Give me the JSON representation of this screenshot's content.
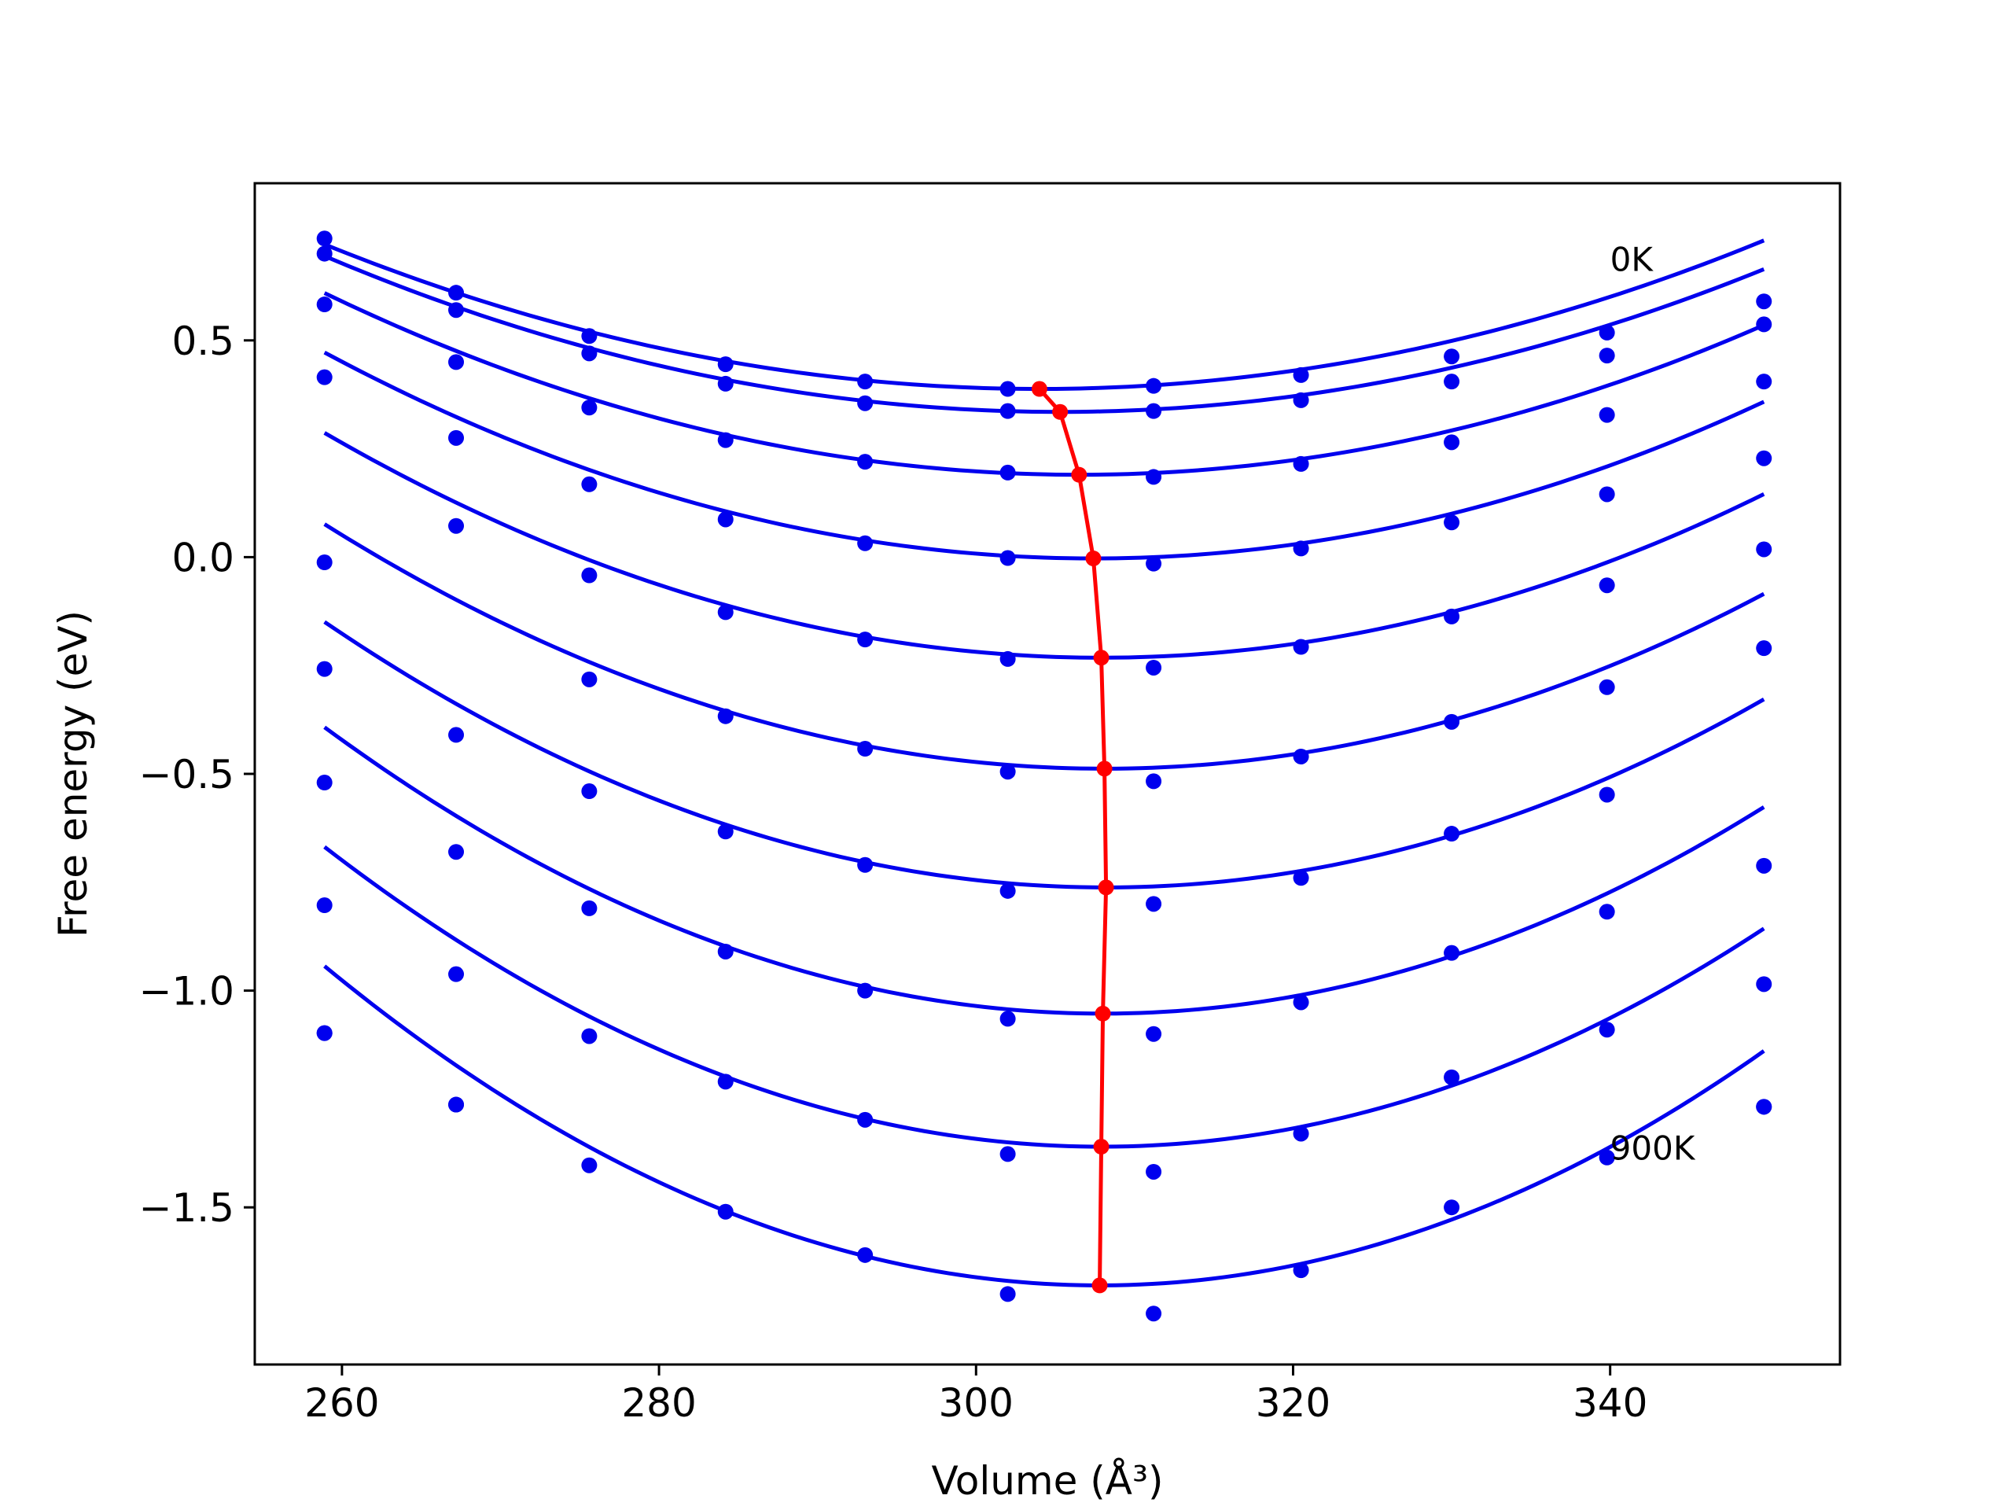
{
  "chart_data": {
    "type": "scatter",
    "title": "",
    "xlabel": "Volume (Å³)",
    "ylabel": "Free energy (eV)",
    "xlim": [
      254.5,
      354.5
    ],
    "ylim": [
      -1.8625,
      0.8625
    ],
    "xticks": [
      260,
      280,
      300,
      320,
      340
    ],
    "xtick_labels": [
      "260",
      "280",
      "300",
      "320",
      "340"
    ],
    "yticks": [
      0.5,
      0.0,
      -0.5,
      -1.0,
      -1.5
    ],
    "ytick_labels": [
      "0.5",
      "0.0",
      "−0.5",
      "−1.0",
      "−1.5"
    ],
    "grid": false,
    "legend": "none",
    "colors": {
      "points": "#0000ee",
      "fit": "#0000ee",
      "minimum_path": "#ff0000"
    },
    "annotations": [
      {
        "text": "0K",
        "x": 340.0,
        "y": 0.66
      },
      {
        "text": "900K",
        "x": 340.0,
        "y": -1.39
      }
    ],
    "volumes": [
      258.9,
      267.2,
      275.6,
      284.2,
      293.0,
      302.0,
      311.2,
      320.5,
      330.0,
      339.8,
      349.7
    ],
    "curves": [
      {
        "points": [
          0.735,
          0.61,
          0.51,
          0.445,
          0.405,
          0.388,
          0.395,
          0.42,
          0.463,
          0.518,
          0.59
        ],
        "fit": {
          "x0": 304.0,
          "f0": 0.388,
          "a": 0.000164
        }
      },
      {
        "points": [
          0.7,
          0.57,
          0.47,
          0.4,
          0.355,
          0.337,
          0.337,
          0.362,
          0.405,
          0.465,
          0.537
        ],
        "fit": {
          "x0": 305.3,
          "f0": 0.335,
          "a": 0.000167
        }
      },
      {
        "points": [
          0.583,
          0.45,
          0.345,
          0.27,
          0.22,
          0.195,
          0.185,
          0.215,
          0.265,
          0.328,
          0.405
        ],
        "fit": {
          "x0": 306.5,
          "f0": 0.19,
          "a": 0.000185
        }
      },
      {
        "points": [
          0.415,
          0.275,
          0.168,
          0.087,
          0.032,
          -0.002,
          -0.015,
          0.02,
          0.08,
          0.145,
          0.228
        ],
        "fit": {
          "x0": 307.4,
          "f0": -0.003,
          "a": 0.000202
        }
      },
      {
        "points": [
          -0.012,
          0.072,
          -0.042,
          -0.127,
          -0.19,
          -0.235,
          -0.255,
          -0.207,
          -0.137,
          -0.065,
          0.018
        ],
        "fit": {
          "x0": 307.9,
          "f0": -0.232,
          "a": 0.000216
        }
      },
      {
        "points": [
          -0.258,
          -0.41,
          -0.282,
          -0.367,
          -0.442,
          -0.495,
          -0.517,
          -0.46,
          -0.38,
          -0.3,
          -0.21
        ],
        "fit": {
          "x0": 308.1,
          "f0": -0.488,
          "a": 0.000233
        }
      },
      {
        "points": [
          -0.52,
          -0.68,
          -0.54,
          -0.633,
          -0.71,
          -0.77,
          -0.8,
          -0.74,
          -0.638,
          -0.548,
          -0.712
        ],
        "fit": {
          "x0": 308.2,
          "f0": -0.762,
          "a": 0.000252
        }
      },
      {
        "points": [
          -0.803,
          -0.962,
          -0.81,
          -0.91,
          -1.0,
          -1.065,
          -1.1,
          -1.027,
          -0.913,
          -0.818,
          -0.985
        ],
        "fit": {
          "x0": 308.0,
          "f0": -1.053,
          "a": 0.000274
        }
      },
      {
        "points": [
          -1.098,
          -1.263,
          -1.105,
          -1.21,
          -1.298,
          -1.377,
          -1.418,
          -1.33,
          -1.2,
          -1.09,
          -1.268
        ],
        "fit": {
          "x0": 307.9,
          "f0": -1.36,
          "a": 0.000288
        }
      },
      {
        "points": [
          -1.098,
          -1.263,
          -1.403,
          -1.51,
          -1.61,
          -1.7,
          -1.745,
          -1.645,
          -1.5,
          -1.385,
          -1.268
        ],
        "fit": {
          "x0": 307.8,
          "f0": -1.68,
          "a": 0.000308
        }
      }
    ],
    "minimum_path": {
      "x": [
        304.0,
        305.3,
        306.5,
        307.4,
        307.9,
        308.1,
        308.2,
        308.0,
        307.9,
        307.8
      ],
      "y": [
        0.388,
        0.335,
        0.19,
        -0.003,
        -0.232,
        -0.488,
        -0.762,
        -1.053,
        -1.36,
        -1.68
      ]
    }
  }
}
